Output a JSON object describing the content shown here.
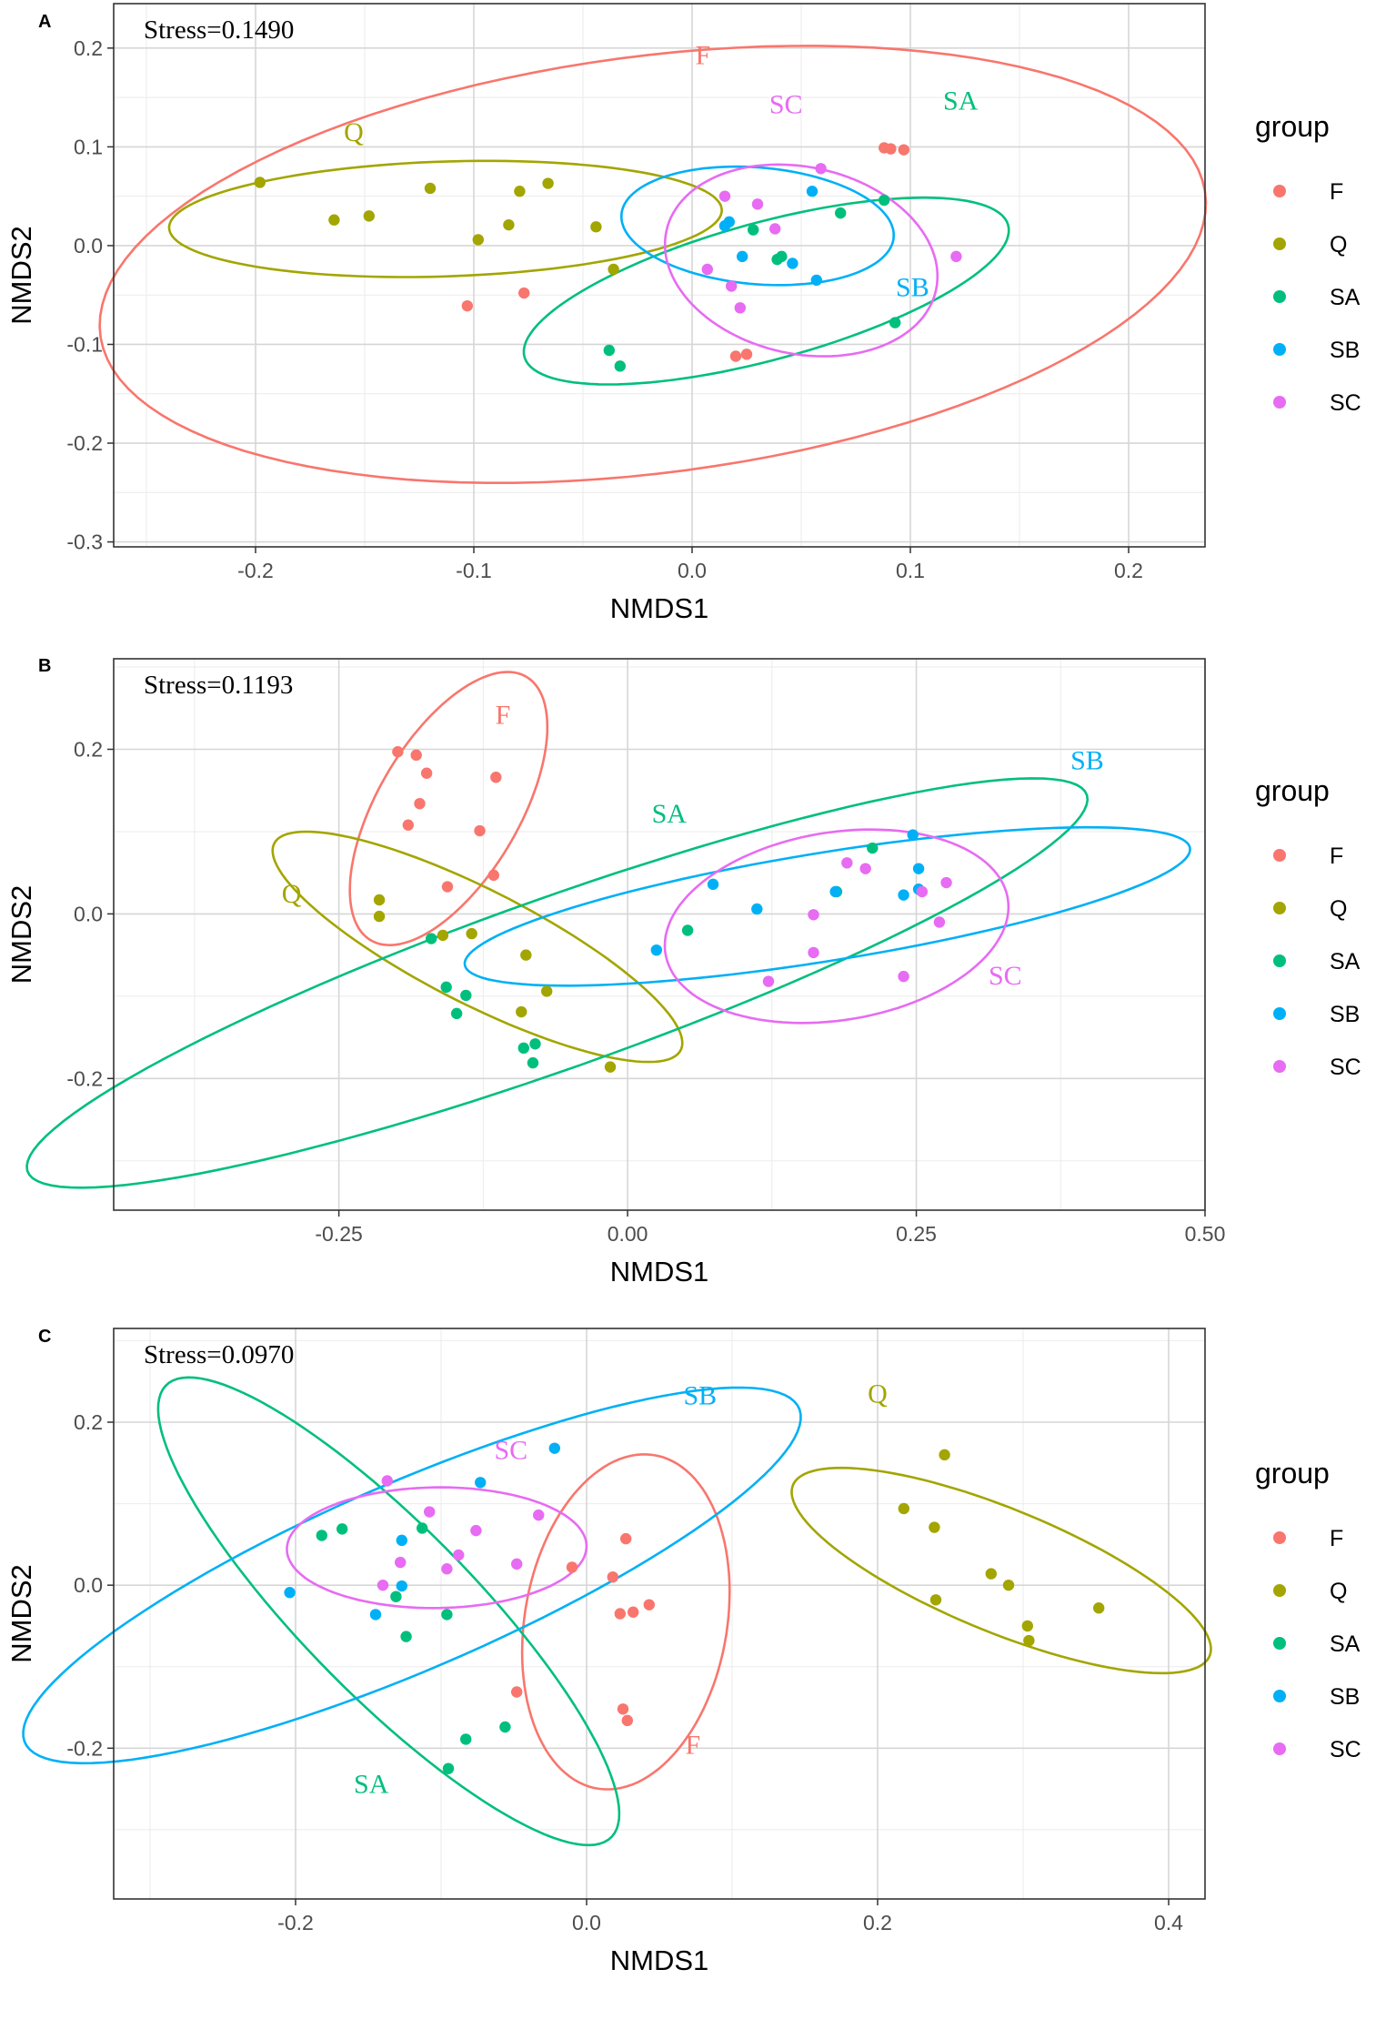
{
  "legend": {
    "title": "group",
    "groups": [
      {
        "key": "F",
        "label": "F",
        "color": "#F8766D"
      },
      {
        "key": "Q",
        "label": "Q",
        "color": "#A3A500"
      },
      {
        "key": "SA",
        "label": "SA",
        "color": "#00BF7D"
      },
      {
        "key": "SB",
        "label": "SB",
        "color": "#00B0F6"
      },
      {
        "key": "SC",
        "label": "SC",
        "color": "#E76BF3"
      }
    ]
  },
  "chart_data": [
    {
      "type": "scatter",
      "panel": "A",
      "annotation": "Stress=0.1490",
      "xlabel": "NMDS1",
      "ylabel": "NMDS2",
      "xlim": [
        -0.265,
        0.235
      ],
      "ylim": [
        -0.305,
        0.245
      ],
      "xticks": [
        -0.2,
        -0.1,
        0.0,
        0.1,
        0.2
      ],
      "xtick_labels": [
        "-0.2",
        "-0.1",
        "0.0",
        "0.1",
        "0.2"
      ],
      "yticks": [
        -0.3,
        -0.2,
        -0.1,
        0.0,
        0.1,
        0.2
      ],
      "ytick_labels": [
        "-0.3",
        "-0.2",
        "-0.1",
        "0.0",
        "0.1",
        "0.2"
      ],
      "series": [
        {
          "name": "F",
          "points": [
            [
              -0.103,
              -0.061
            ],
            [
              -0.077,
              -0.048
            ],
            [
              0.088,
              0.099
            ],
            [
              0.091,
              0.098
            ],
            [
              0.097,
              0.097
            ],
            [
              0.02,
              -0.112
            ],
            [
              0.025,
              -0.11
            ]
          ]
        },
        {
          "name": "Q",
          "points": [
            [
              -0.198,
              0.064
            ],
            [
              -0.164,
              0.026
            ],
            [
              -0.148,
              0.03
            ],
            [
              -0.12,
              0.058
            ],
            [
              -0.098,
              0.006
            ],
            [
              -0.084,
              0.021
            ],
            [
              -0.079,
              0.055
            ],
            [
              -0.066,
              0.063
            ],
            [
              -0.044,
              0.019
            ],
            [
              -0.036,
              -0.024
            ]
          ]
        },
        {
          "name": "SA",
          "points": [
            [
              -0.038,
              -0.106
            ],
            [
              -0.033,
              -0.122
            ],
            [
              0.028,
              0.016
            ],
            [
              0.039,
              -0.014
            ],
            [
              0.041,
              -0.011
            ],
            [
              0.068,
              0.033
            ],
            [
              0.088,
              0.046
            ],
            [
              0.093,
              -0.078
            ]
          ]
        },
        {
          "name": "SB",
          "points": [
            [
              0.015,
              0.02
            ],
            [
              0.017,
              0.024
            ],
            [
              0.023,
              -0.011
            ],
            [
              0.046,
              -0.018
            ],
            [
              0.055,
              0.055
            ],
            [
              0.057,
              -0.035
            ]
          ]
        },
        {
          "name": "SC",
          "points": [
            [
              0.015,
              0.05
            ],
            [
              0.007,
              -0.024
            ],
            [
              0.018,
              -0.041
            ],
            [
              0.022,
              -0.063
            ],
            [
              0.03,
              0.042
            ],
            [
              0.038,
              0.017
            ],
            [
              0.059,
              0.078
            ],
            [
              0.121,
              -0.011
            ]
          ]
        }
      ],
      "ellipses": [
        {
          "group": "F",
          "cx": -0.018,
          "cy": -0.019,
          "rx": 0.272,
          "ry": 0.198,
          "angle_deg": 32
        },
        {
          "group": "Q",
          "cx": -0.113,
          "cy": 0.027,
          "rx": 0.127,
          "ry": 0.058,
          "angle_deg": 5
        },
        {
          "group": "SA",
          "cx": 0.034,
          "cy": -0.046,
          "rx": 0.133,
          "ry": 0.06,
          "angle_deg": 38
        },
        {
          "group": "SB",
          "cx": 0.03,
          "cy": 0.02,
          "rx": 0.066,
          "ry": 0.056,
          "angle_deg": -38
        },
        {
          "group": "SC",
          "cx": 0.05,
          "cy": -0.015,
          "rx": 0.061,
          "ry": 0.098,
          "angle_deg": 10
        }
      ],
      "labels": [
        {
          "group": "F",
          "text": "F",
          "x": 0.005,
          "y": 0.193
        },
        {
          "group": "Q",
          "text": "Q",
          "x": -0.155,
          "y": 0.115
        },
        {
          "group": "SA",
          "text": "SA",
          "x": 0.123,
          "y": 0.147
        },
        {
          "group": "SB",
          "text": "SB",
          "x": 0.101,
          "y": -0.042
        },
        {
          "group": "SC",
          "text": "SC",
          "x": 0.043,
          "y": 0.143
        }
      ]
    },
    {
      "type": "scatter",
      "panel": "B",
      "annotation": "Stress=0.1193",
      "xlabel": "NMDS1",
      "ylabel": "NMDS2",
      "xlim": [
        -0.445,
        0.5
      ],
      "ylim": [
        -0.36,
        0.31
      ],
      "xticks": [
        -0.25,
        0.0,
        0.25,
        0.5
      ],
      "xtick_labels": [
        "-0.25",
        "0.00",
        "0.25",
        "0.50"
      ],
      "yticks": [
        -0.2,
        0.0,
        0.2
      ],
      "ytick_labels": [
        "-0.2",
        "0.0",
        "0.2"
      ],
      "series": [
        {
          "name": "F",
          "points": [
            [
              -0.199,
              0.197
            ],
            [
              -0.183,
              0.193
            ],
            [
              -0.174,
              0.171
            ],
            [
              -0.18,
              0.134
            ],
            [
              -0.114,
              0.166
            ],
            [
              -0.19,
              0.108
            ],
            [
              -0.128,
              0.101
            ],
            [
              -0.116,
              0.047
            ],
            [
              -0.156,
              0.033
            ]
          ]
        },
        {
          "name": "Q",
          "points": [
            [
              -0.215,
              0.017
            ],
            [
              -0.215,
              -0.003
            ],
            [
              -0.16,
              -0.026
            ],
            [
              -0.135,
              -0.024
            ],
            [
              -0.088,
              -0.05
            ],
            [
              -0.07,
              -0.094
            ],
            [
              -0.092,
              -0.119
            ],
            [
              -0.015,
              -0.186
            ]
          ]
        },
        {
          "name": "SA",
          "points": [
            [
              -0.17,
              -0.03
            ],
            [
              -0.157,
              -0.089
            ],
            [
              -0.148,
              -0.121
            ],
            [
              -0.14,
              -0.099
            ],
            [
              -0.09,
              -0.163
            ],
            [
              -0.08,
              -0.158
            ],
            [
              -0.082,
              -0.181
            ],
            [
              0.052,
              -0.02
            ],
            [
              0.181,
              0.027
            ],
            [
              0.212,
              0.08
            ]
          ]
        },
        {
          "name": "SB",
          "points": [
            [
              0.025,
              -0.044
            ],
            [
              0.074,
              0.036
            ],
            [
              0.112,
              0.006
            ],
            [
              0.18,
              0.027
            ],
            [
              0.239,
              0.023
            ],
            [
              0.247,
              0.096
            ],
            [
              0.252,
              0.055
            ],
            [
              0.252,
              0.03
            ]
          ]
        },
        {
          "name": "SC",
          "points": [
            [
              0.122,
              -0.082
            ],
            [
              0.161,
              -0.001
            ],
            [
              0.161,
              -0.047
            ],
            [
              0.19,
              0.062
            ],
            [
              0.206,
              0.055
            ],
            [
              0.239,
              -0.076
            ],
            [
              0.255,
              0.027
            ],
            [
              0.27,
              -0.01
            ],
            [
              0.276,
              0.038
            ]
          ]
        }
      ],
      "ellipses": [
        {
          "group": "F",
          "cx": -0.155,
          "cy": 0.128,
          "rx": 0.175,
          "ry": 0.065,
          "angle_deg": 70
        },
        {
          "group": "Q",
          "cx": -0.13,
          "cy": -0.04,
          "rx": 0.217,
          "ry": 0.063,
          "angle_deg": -37
        },
        {
          "group": "SA",
          "cx": -0.061,
          "cy": -0.084,
          "rx": 0.513,
          "ry": 0.098,
          "angle_deg": 27
        },
        {
          "group": "SB",
          "cx": 0.173,
          "cy": 0.009,
          "rx": 0.322,
          "ry": 0.065,
          "angle_deg": 13
        },
        {
          "group": "SC",
          "cx": 0.181,
          "cy": -0.015,
          "rx": 0.153,
          "ry": 0.112,
          "angle_deg": 20
        }
      ],
      "labels": [
        {
          "group": "F",
          "text": "F",
          "x": -0.108,
          "y": 0.242
        },
        {
          "group": "Q",
          "text": "Q",
          "x": -0.291,
          "y": 0.025
        },
        {
          "group": "SA",
          "text": "SA",
          "x": 0.036,
          "y": 0.122
        },
        {
          "group": "SB",
          "text": "SB",
          "x": 0.398,
          "y": 0.187
        },
        {
          "group": "SC",
          "text": "SC",
          "x": 0.327,
          "y": -0.075
        }
      ]
    },
    {
      "type": "scatter",
      "panel": "C",
      "annotation": "Stress=0.0970",
      "xlabel": "NMDS1",
      "ylabel": "NMDS2",
      "xlim": [
        -0.325,
        0.425
      ],
      "ylim": [
        -0.385,
        0.315
      ],
      "xticks": [
        -0.2,
        0.0,
        0.2,
        0.4
      ],
      "xtick_labels": [
        "-0.2",
        "0.0",
        "0.2",
        "0.4"
      ],
      "yticks": [
        -0.2,
        0.0,
        0.2
      ],
      "ytick_labels": [
        "-0.2",
        "0.0",
        "0.2"
      ],
      "series": [
        {
          "name": "F",
          "points": [
            [
              -0.048,
              -0.131
            ],
            [
              -0.01,
              0.022
            ],
            [
              0.018,
              0.01
            ],
            [
              0.023,
              -0.035
            ],
            [
              0.032,
              -0.033
            ],
            [
              0.043,
              -0.024
            ],
            [
              0.027,
              0.057
            ],
            [
              0.025,
              -0.152
            ],
            [
              0.028,
              -0.166
            ]
          ]
        },
        {
          "name": "Q",
          "points": [
            [
              0.218,
              0.094
            ],
            [
              0.239,
              0.071
            ],
            [
              0.246,
              0.16
            ],
            [
              0.24,
              -0.018
            ],
            [
              0.278,
              0.014
            ],
            [
              0.29,
              0.0
            ],
            [
              0.303,
              -0.05
            ],
            [
              0.304,
              -0.068
            ],
            [
              0.352,
              -0.028
            ]
          ]
        },
        {
          "name": "SA",
          "points": [
            [
              -0.182,
              0.061
            ],
            [
              -0.168,
              0.069
            ],
            [
              -0.131,
              -0.014
            ],
            [
              -0.124,
              -0.063
            ],
            [
              -0.113,
              0.07
            ],
            [
              -0.096,
              -0.036
            ],
            [
              -0.083,
              -0.189
            ],
            [
              -0.056,
              -0.174
            ],
            [
              -0.095,
              -0.225
            ]
          ]
        },
        {
          "name": "SB",
          "points": [
            [
              -0.204,
              -0.009
            ],
            [
              -0.127,
              0.055
            ],
            [
              -0.127,
              -0.001
            ],
            [
              -0.145,
              -0.036
            ],
            [
              -0.073,
              0.126
            ],
            [
              -0.022,
              0.168
            ]
          ]
        },
        {
          "name": "SC",
          "points": [
            [
              -0.137,
              0.128
            ],
            [
              -0.128,
              0.028
            ],
            [
              -0.14,
              0.0
            ],
            [
              -0.108,
              0.09
            ],
            [
              -0.096,
              0.02
            ],
            [
              -0.088,
              0.037
            ],
            [
              -0.076,
              0.067
            ],
            [
              -0.048,
              0.026
            ],
            [
              -0.033,
              0.086
            ]
          ]
        }
      ],
      "ellipses": [
        {
          "group": "F",
          "cx": 0.027,
          "cy": -0.045,
          "rx": 0.206,
          "ry": 0.07,
          "angle_deg": 86
        },
        {
          "group": "Q",
          "cx": 0.285,
          "cy": 0.018,
          "rx": 0.18,
          "ry": 0.065,
          "angle_deg": -40
        },
        {
          "group": "SA",
          "cx": -0.136,
          "cy": -0.032,
          "rx": 0.32,
          "ry": 0.071,
          "angle_deg": -63
        },
        {
          "group": "SB",
          "cx": -0.12,
          "cy": 0.012,
          "rx": 0.339,
          "ry": 0.098,
          "angle_deg": 40
        },
        {
          "group": "SC",
          "cx": -0.103,
          "cy": 0.046,
          "rx": 0.103,
          "ry": 0.074,
          "angle_deg": 2
        }
      ],
      "labels": [
        {
          "group": "F",
          "text": "F",
          "x": 0.073,
          "y": -0.196
        },
        {
          "group": "Q",
          "text": "Q",
          "x": 0.2,
          "y": 0.235
        },
        {
          "group": "SA",
          "text": "SA",
          "x": -0.148,
          "y": -0.244
        },
        {
          "group": "SB",
          "text": "SB",
          "x": 0.078,
          "y": 0.233
        },
        {
          "group": "SC",
          "text": "SC",
          "x": -0.052,
          "y": 0.166
        }
      ]
    }
  ]
}
